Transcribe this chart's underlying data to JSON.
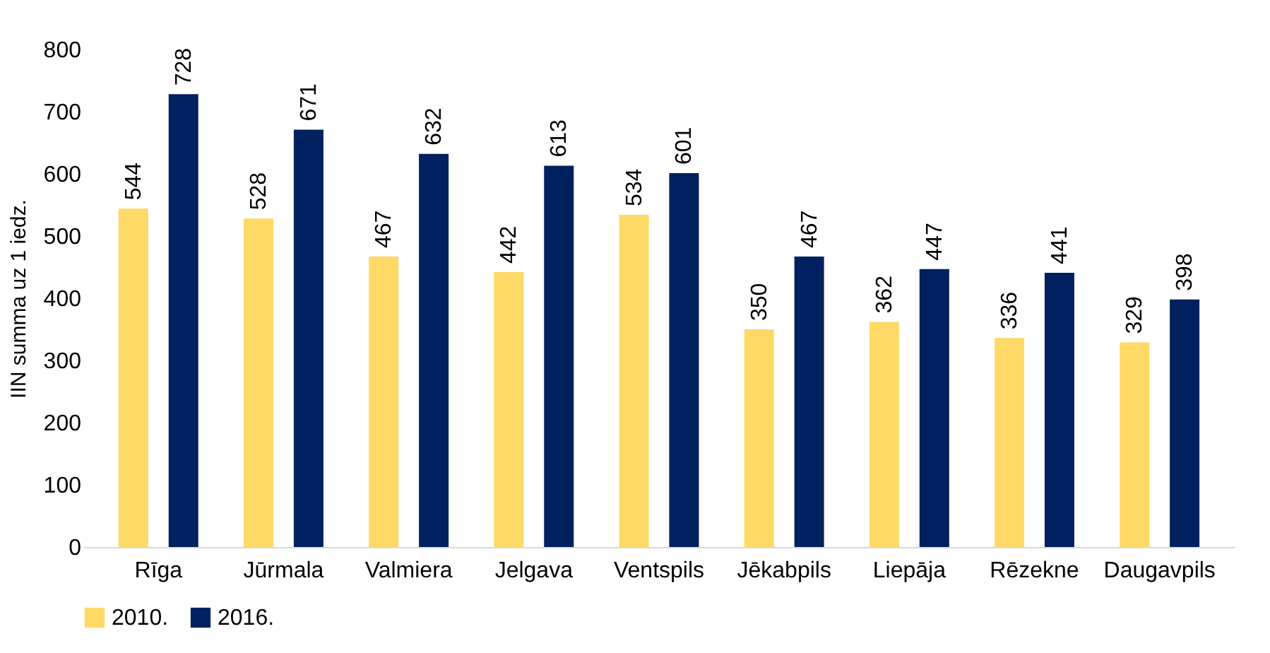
{
  "chart_data": {
    "type": "bar",
    "ylabel": "IIN summa uz 1 iedz.",
    "categories": [
      "Rīga",
      "Jūrmala",
      "Valmiera",
      "Jelgava",
      "Ventspils",
      "Jēkabpils",
      "Liepāja",
      "Rēzekne",
      "Daugavpils"
    ],
    "series": [
      {
        "name": "2010.",
        "color": "#ffd966",
        "values": [
          544,
          528,
          467,
          442,
          534,
          350,
          362,
          336,
          329
        ]
      },
      {
        "name": "2016.",
        "color": "#002060",
        "values": [
          728,
          671,
          632,
          613,
          601,
          467,
          447,
          441,
          398
        ]
      }
    ],
    "ylim": [
      0,
      800
    ],
    "yticks": [
      0,
      100,
      200,
      300,
      400,
      500,
      600,
      700,
      800
    ],
    "grid": false,
    "legend": "bottom",
    "data_labels": true
  }
}
